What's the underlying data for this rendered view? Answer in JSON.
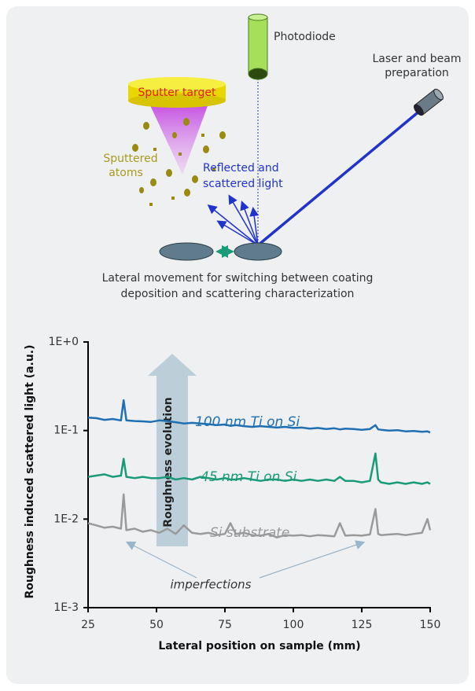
{
  "diagram": {
    "photodiode": "Photodiode",
    "laser": [
      "Laser and beam",
      "preparation"
    ],
    "target": "Sputter target",
    "atoms": [
      "Sputtered",
      "atoms"
    ],
    "light": [
      "Reflected and",
      "scattered light"
    ],
    "caption": [
      "Lateral movement for switching between coating",
      "deposition and scattering characterization"
    ]
  },
  "chart_data": {
    "type": "line",
    "x_label": "Lateral position on sample (mm)",
    "y_label": "Roughness induced scattered light (a.u.)",
    "log_scale": "y",
    "grid": false,
    "xlim": [
      25,
      150
    ],
    "xticks": [
      25,
      50,
      75,
      100,
      125,
      150
    ],
    "ylim": [
      0.001,
      1
    ],
    "yticks": [
      {
        "value": 0.001,
        "label": "1E-3"
      },
      {
        "value": 0.01,
        "label": "1E-2"
      },
      {
        "value": 0.1,
        "label": "1E-1"
      },
      {
        "value": 1,
        "label": "1E+0"
      }
    ],
    "annotations": [
      "Roughness evolution",
      "imperfections"
    ],
    "x": [
      25,
      28,
      31,
      34,
      37,
      38,
      39,
      42,
      45,
      48,
      51,
      54,
      57,
      60,
      63,
      66,
      69,
      72,
      75,
      77,
      79,
      82,
      85,
      88,
      91,
      94,
      97,
      100,
      103,
      106,
      109,
      112,
      115,
      117,
      119,
      122,
      125,
      128,
      130,
      131,
      132,
      135,
      138,
      141,
      144,
      147,
      149,
      150
    ],
    "series": [
      {
        "name": "100 nm Ti on Si",
        "color": "#1f6fb2",
        "values": [
          0.14,
          0.138,
          0.132,
          0.135,
          0.13,
          0.22,
          0.13,
          0.128,
          0.127,
          0.125,
          0.13,
          0.128,
          0.124,
          0.12,
          0.122,
          0.12,
          0.118,
          0.115,
          0.117,
          0.113,
          0.115,
          0.112,
          0.11,
          0.112,
          0.11,
          0.108,
          0.11,
          0.107,
          0.108,
          0.105,
          0.107,
          0.104,
          0.106,
          0.103,
          0.105,
          0.104,
          0.102,
          0.104,
          0.115,
          0.103,
          0.102,
          0.1,
          0.101,
          0.098,
          0.099,
          0.097,
          0.098,
          0.095
        ]
      },
      {
        "name": "45 nm Ti on Si",
        "color": "#1a9a78",
        "values": [
          0.03,
          0.031,
          0.032,
          0.03,
          0.031,
          0.048,
          0.03,
          0.029,
          0.03,
          0.029,
          0.029,
          0.03,
          0.028,
          0.029,
          0.028,
          0.03,
          0.029,
          0.028,
          0.029,
          0.028,
          0.028,
          0.029,
          0.028,
          0.027,
          0.028,
          0.028,
          0.027,
          0.028,
          0.027,
          0.028,
          0.027,
          0.028,
          0.027,
          0.03,
          0.027,
          0.027,
          0.026,
          0.027,
          0.055,
          0.028,
          0.026,
          0.025,
          0.026,
          0.025,
          0.026,
          0.025,
          0.026,
          0.025
        ]
      },
      {
        "name": "Si substrate",
        "color": "#9a9a9a",
        "values": [
          0.009,
          0.0085,
          0.008,
          0.0082,
          0.0078,
          0.019,
          0.0075,
          0.0078,
          0.0072,
          0.0075,
          0.007,
          0.0078,
          0.0068,
          0.0085,
          0.007,
          0.0068,
          0.007,
          0.0066,
          0.0068,
          0.009,
          0.0068,
          0.007,
          0.0066,
          0.0065,
          0.0068,
          0.0062,
          0.0066,
          0.0065,
          0.0066,
          0.0064,
          0.0066,
          0.0065,
          0.0064,
          0.009,
          0.0065,
          0.0066,
          0.0065,
          0.0067,
          0.013,
          0.0068,
          0.0066,
          0.0067,
          0.0068,
          0.0066,
          0.0068,
          0.007,
          0.01,
          0.0075
        ]
      }
    ]
  }
}
